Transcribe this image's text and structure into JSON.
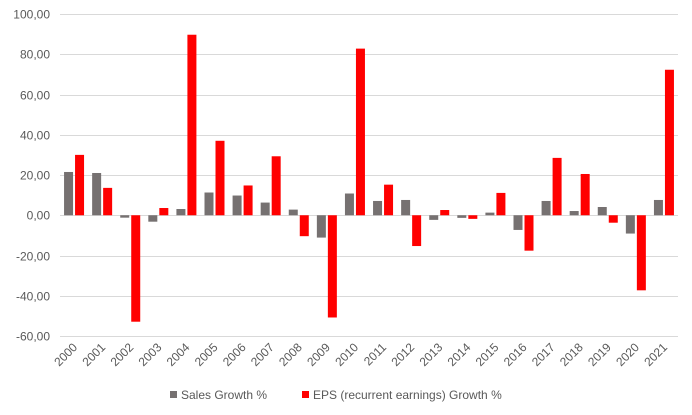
{
  "chart_data": {
    "type": "bar",
    "title": "",
    "xlabel": "",
    "ylabel": "",
    "ylim": [
      -60,
      100
    ],
    "ytick_step": 20,
    "ytick_labels": [
      "100,00",
      "80,00",
      "60,00",
      "40,00",
      "20,00",
      "0,00",
      "-20,00",
      "-40,00",
      "-60,00"
    ],
    "ytick_values": [
      100,
      80,
      60,
      40,
      20,
      0,
      -20,
      -40,
      -60
    ],
    "grid": true,
    "legend_position": "bottom",
    "categories": [
      "2000",
      "2001",
      "2002",
      "2003",
      "2004",
      "2005",
      "2006",
      "2007",
      "2008",
      "2009",
      "2010",
      "2011",
      "2012",
      "2013",
      "2014",
      "2015",
      "2016",
      "2017",
      "2018",
      "2019",
      "2020",
      "2021"
    ],
    "series": [
      {
        "name": "Sales Growth %",
        "color": "#767171",
        "values": [
          21.5,
          21.0,
          -1.2,
          -3.2,
          3.1,
          11.3,
          9.8,
          6.3,
          2.8,
          -11.1,
          10.8,
          7.1,
          7.6,
          -2.3,
          -1.3,
          1.3,
          -7.3,
          7.1,
          2.1,
          4.1,
          -9.1,
          7.6
        ]
      },
      {
        "name": "EPS (recurrent earnings) Growth %",
        "color": "#ff0000",
        "values": [
          30.0,
          13.6,
          -52.9,
          3.6,
          89.7,
          37.0,
          14.8,
          29.3,
          -10.4,
          -50.8,
          82.8,
          15.2,
          -15.3,
          2.6,
          -1.8,
          11.1,
          -17.6,
          28.5,
          20.5,
          -3.7,
          -37.3,
          72.3
        ]
      }
    ]
  },
  "colors": {
    "gridline": "#d9d9d9",
    "axis_text": "#595959"
  }
}
